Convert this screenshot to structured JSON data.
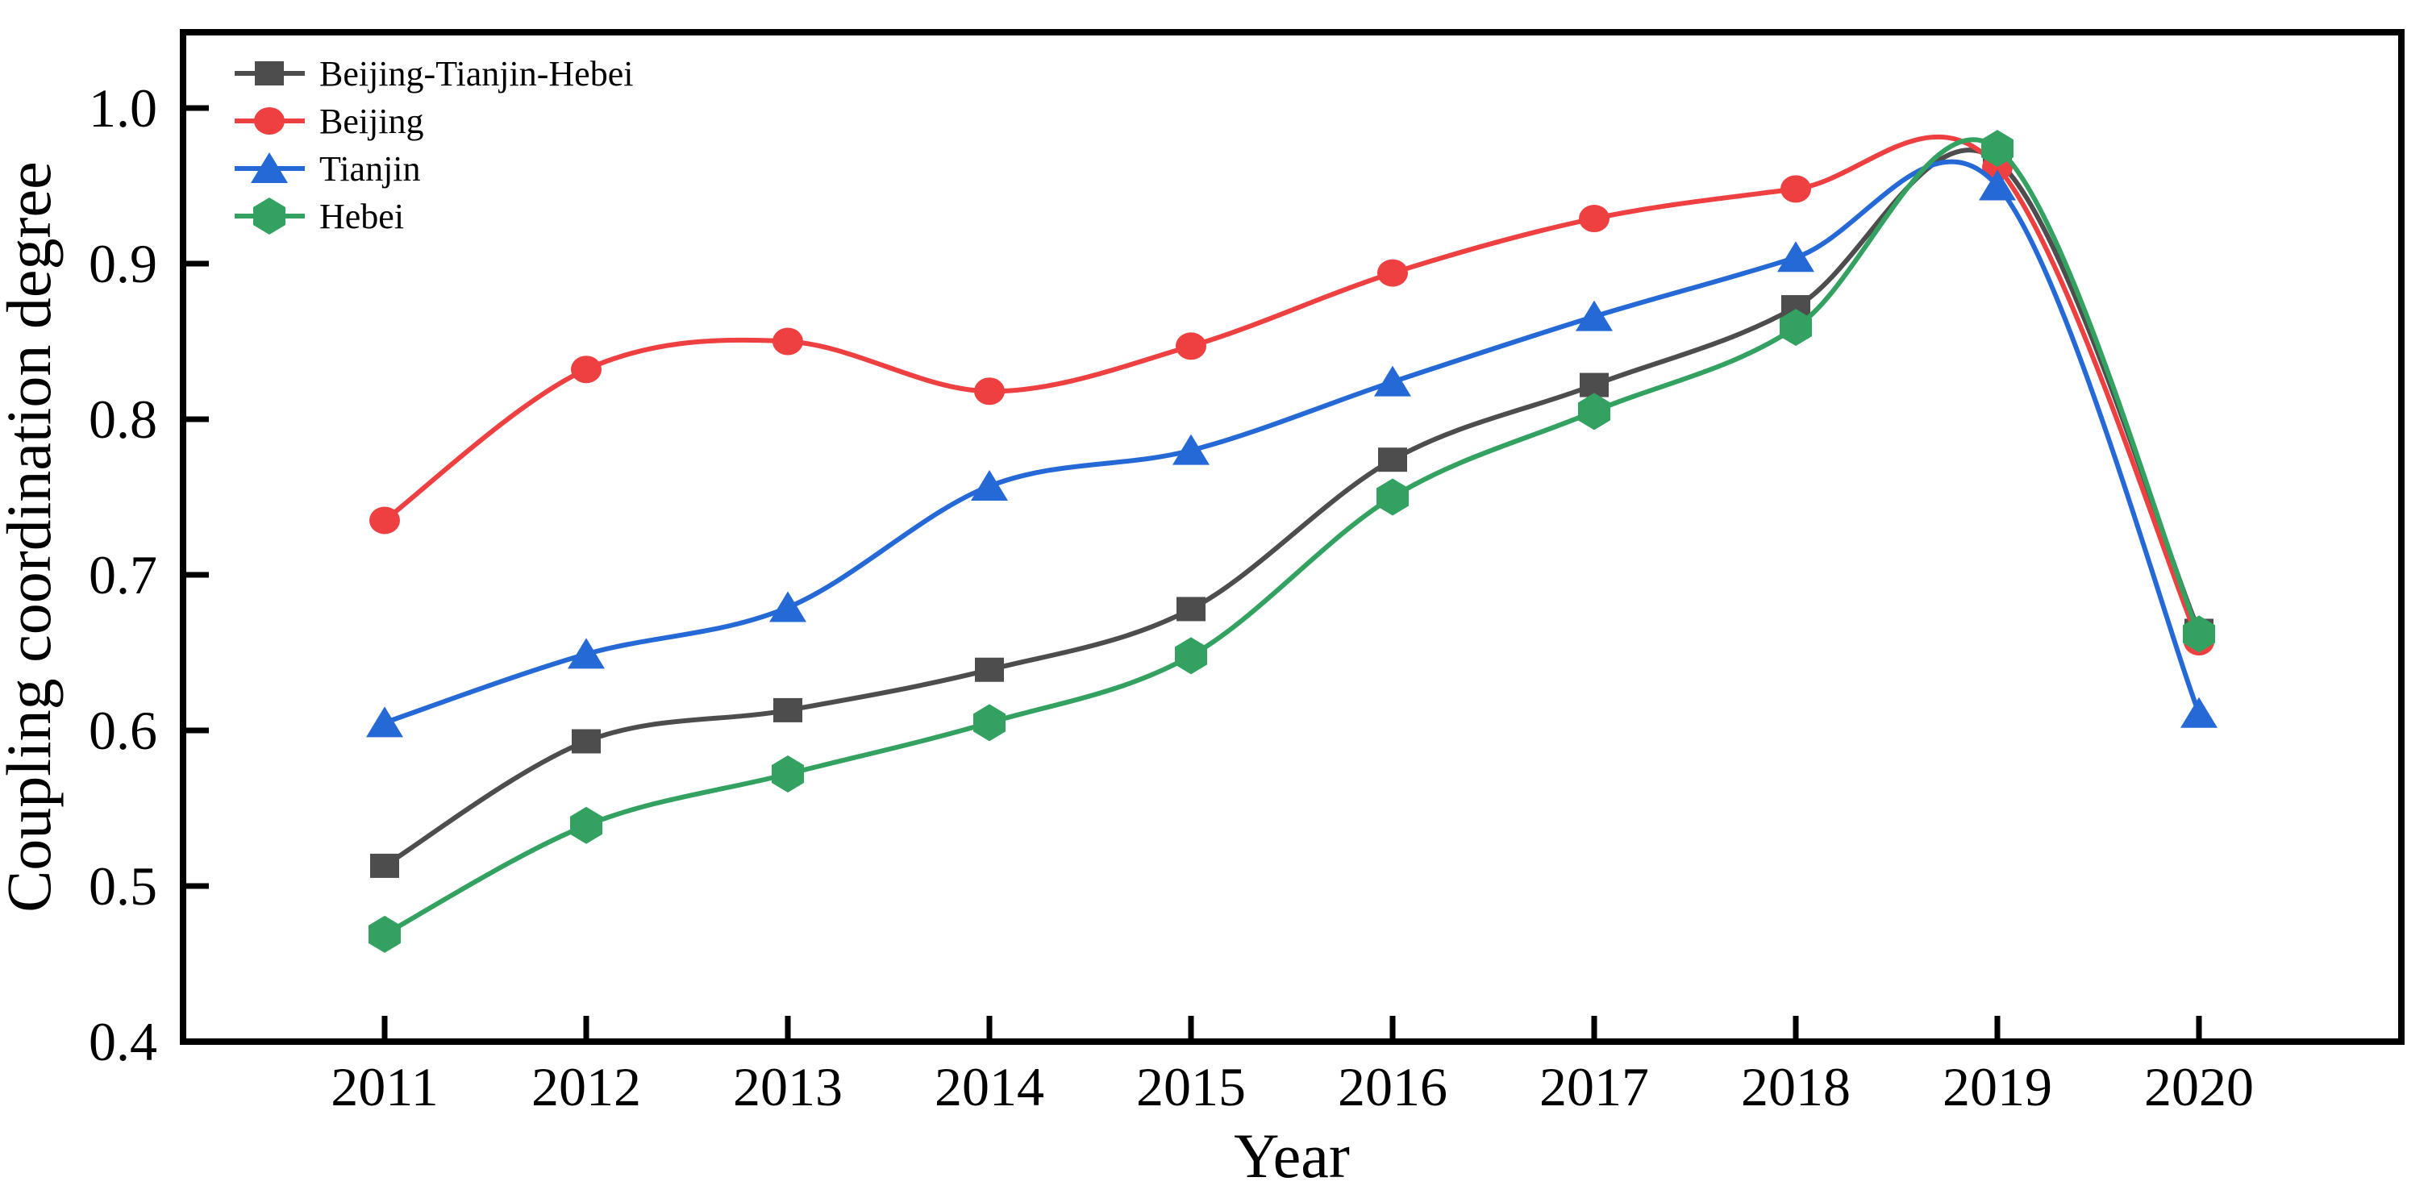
{
  "figure": {
    "background": "#ffffff",
    "text_color": "#000000"
  },
  "chart_data": {
    "type": "line",
    "title": "",
    "xlabel": "Year",
    "ylabel": "Coupling coordination degree",
    "categories": [
      "2011",
      "2012",
      "2013",
      "2014",
      "2015",
      "2016",
      "2017",
      "2018",
      "2019",
      "2020"
    ],
    "ylim": [
      0.4,
      1.05
    ],
    "yticks": [
      1.0,
      0.9,
      0.8,
      0.7,
      0.6,
      0.5,
      0.4
    ],
    "ytick_labels": [
      "1.0",
      "0.9",
      "0.8",
      "0.7",
      "0.6",
      "0.5",
      "0.4"
    ],
    "grid": false,
    "legend_position": "top-left",
    "line_style": "smooth-spline",
    "series": [
      {
        "name": "Beijing-Tianjin-Hebei",
        "color": "#4d4d4d",
        "marker": "square",
        "values": [
          0.513,
          0.593,
          0.613,
          0.639,
          0.678,
          0.774,
          0.822,
          0.872,
          0.966,
          0.664
        ]
      },
      {
        "name": "Beijing",
        "color": "#ee4040",
        "marker": "circle",
        "values": [
          0.735,
          0.832,
          0.85,
          0.818,
          0.847,
          0.894,
          0.929,
          0.948,
          0.962,
          0.657
        ]
      },
      {
        "name": "Tianjin",
        "color": "#2569d6",
        "marker": "triangle",
        "values": [
          0.605,
          0.649,
          0.679,
          0.757,
          0.78,
          0.824,
          0.866,
          0.904,
          0.95,
          0.611
        ]
      },
      {
        "name": "Hebei",
        "color": "#33a261",
        "marker": "hexagon",
        "values": [
          0.469,
          0.539,
          0.572,
          0.605,
          0.648,
          0.75,
          0.805,
          0.859,
          0.974,
          0.662
        ]
      }
    ]
  }
}
